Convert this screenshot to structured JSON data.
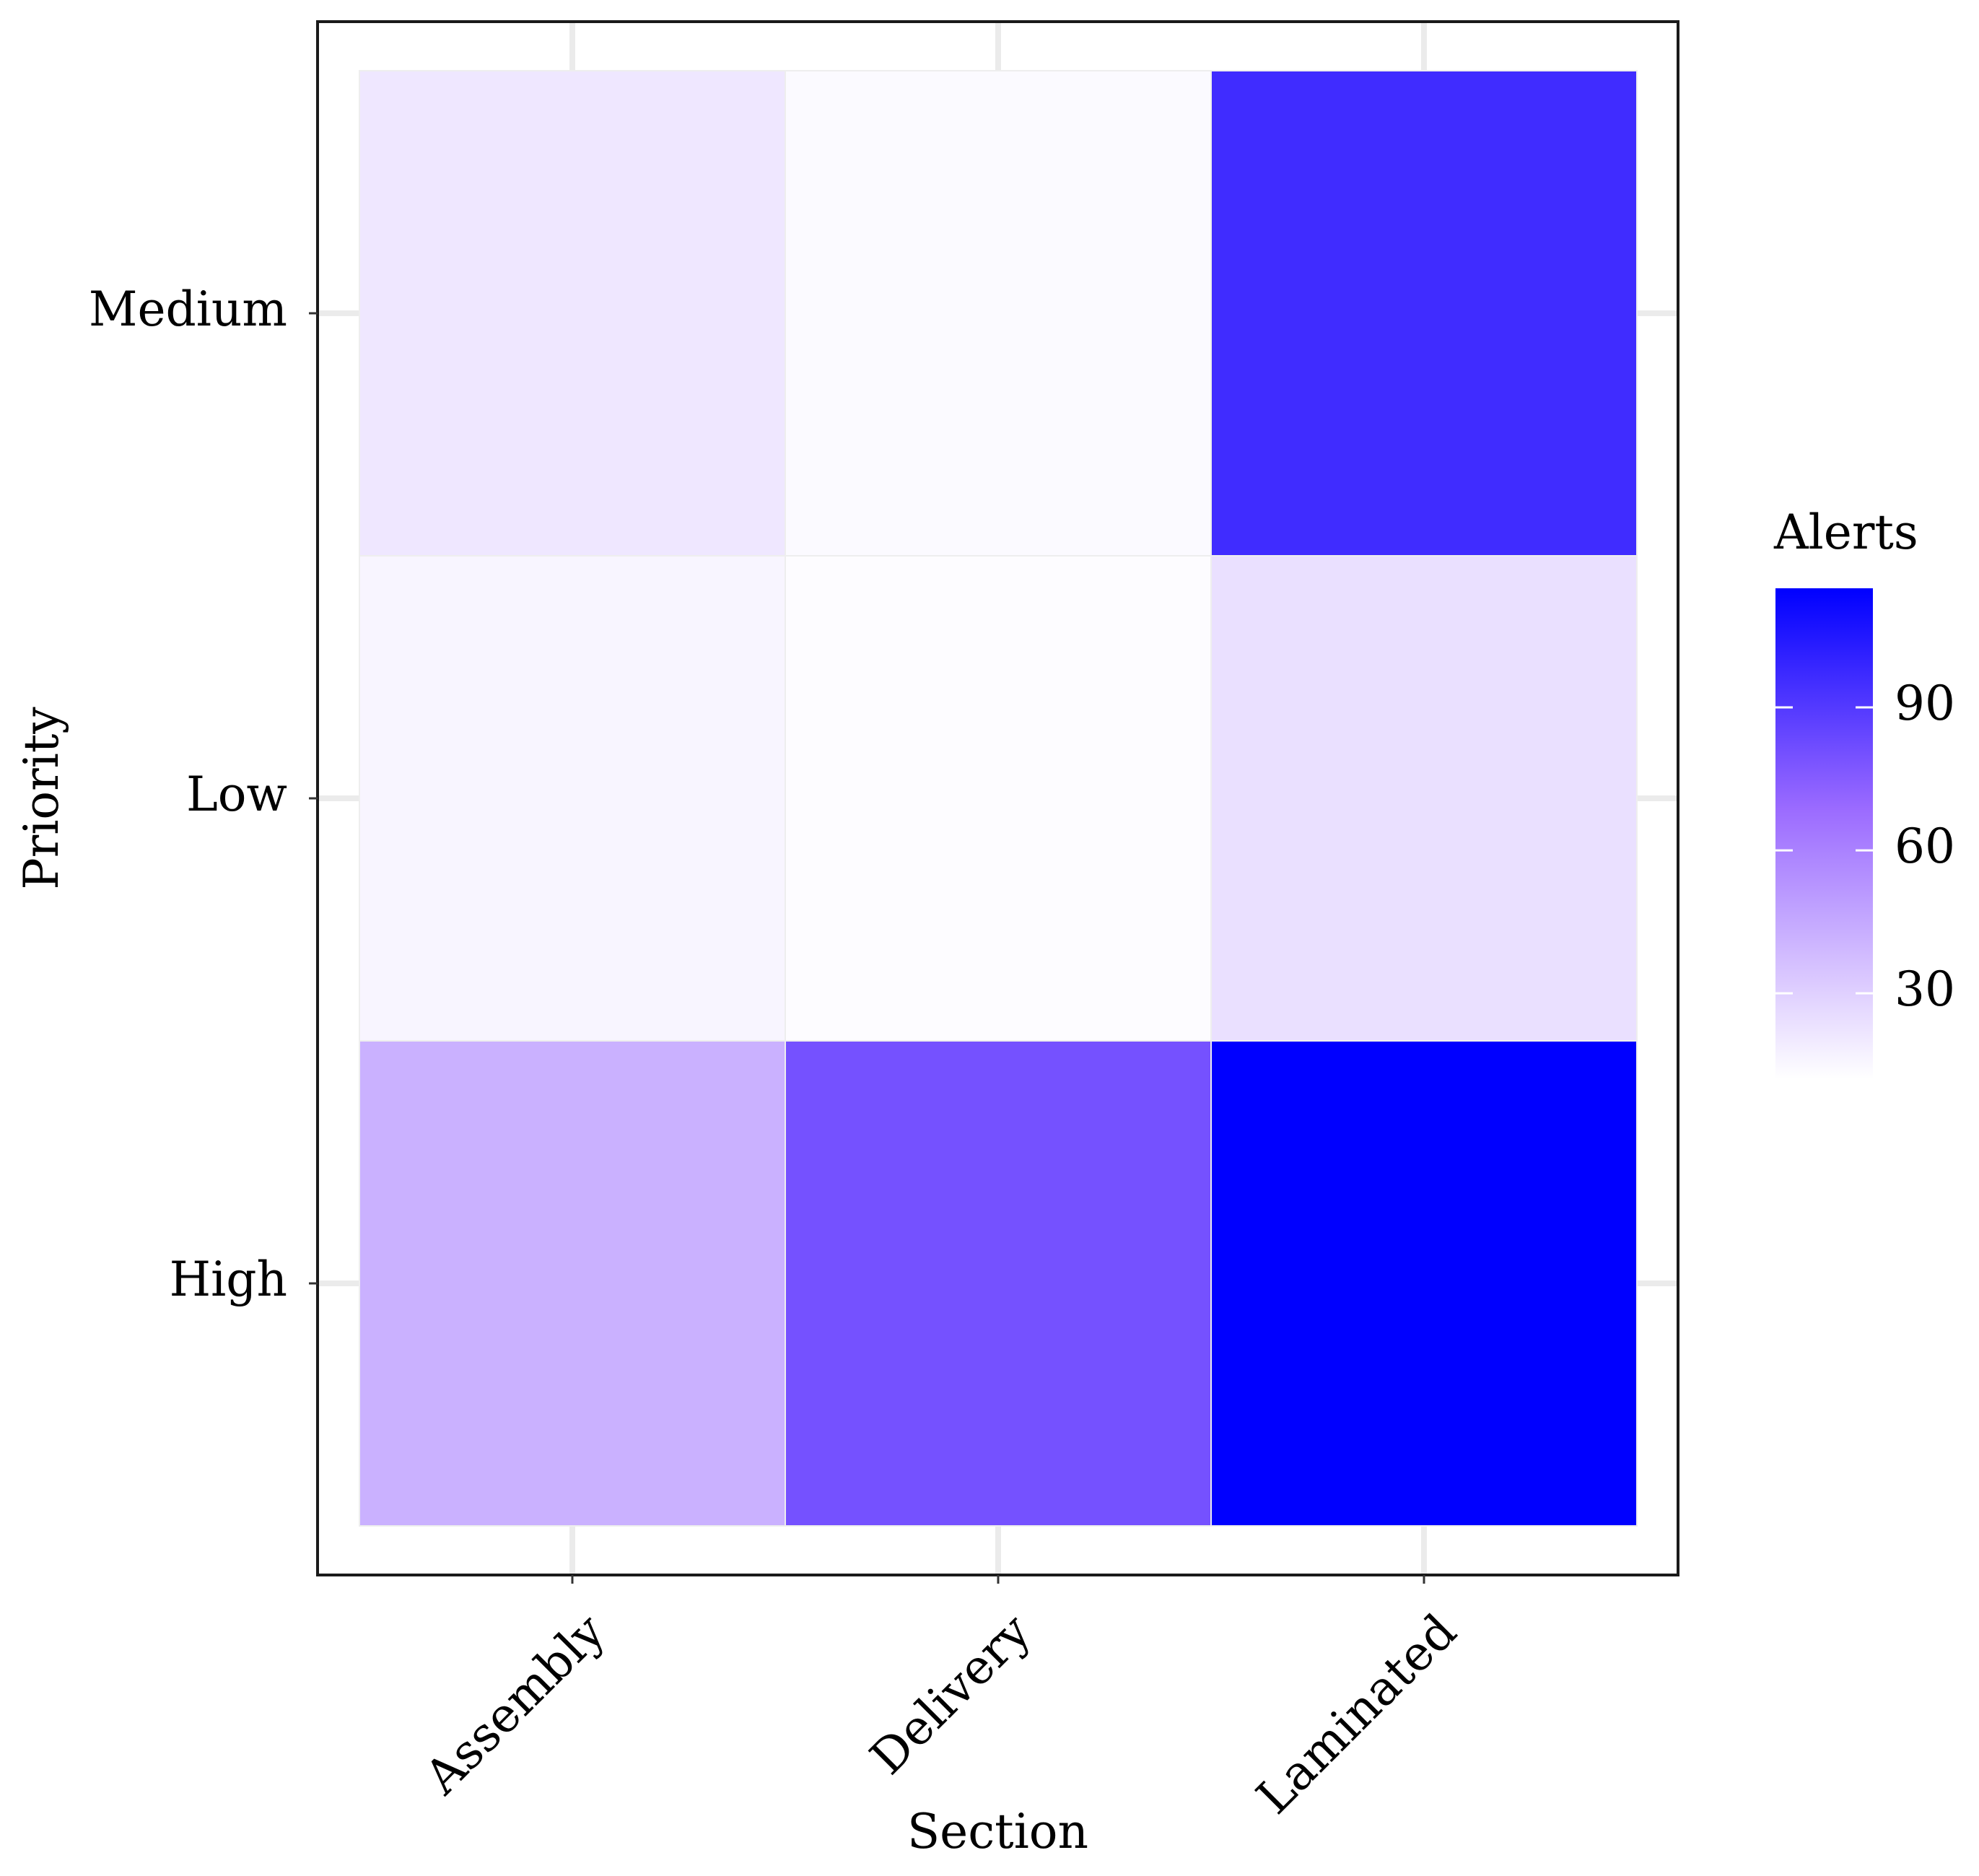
{
  "chart_data": {
    "type": "heatmap",
    "xlabel": "Section",
    "ylabel": "Priority",
    "x_categories": [
      "Assembly",
      "Delivery",
      "Laminated"
    ],
    "y_categories": [
      "High",
      "Low",
      "Medium"
    ],
    "values": [
      [
        42,
        80,
        115
      ],
      [
        16,
        13,
        24
      ],
      [
        21,
        14,
        96
      ]
    ],
    "legend": {
      "title": "Alerts",
      "ticks": [
        30,
        60,
        90
      ],
      "tick_labels": [
        "30",
        "60",
        "90"
      ],
      "range": [
        12,
        115
      ],
      "placement": "right"
    },
    "colors": {
      "low": "#ffffff",
      "mid": "#9b6bff",
      "high": "#0000ff"
    },
    "grid": true
  }
}
